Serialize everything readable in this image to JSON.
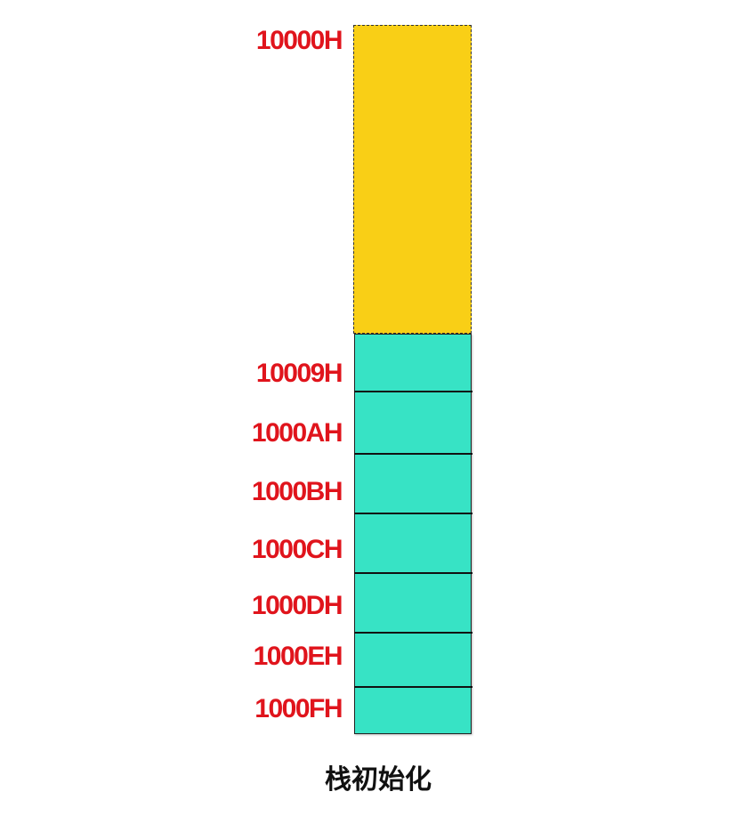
{
  "diagram": {
    "top_address": "10000H",
    "slot_addresses": [
      "10009H",
      "1000AH",
      "1000BH",
      "1000CH",
      "1000DH",
      "1000EH",
      "1000FH"
    ],
    "caption": "栈初始化",
    "colors": {
      "address_label": "#e0141c",
      "unused_region": "#f9cf16",
      "stack_slots": "#37e3c5",
      "caption": "#111111"
    }
  }
}
